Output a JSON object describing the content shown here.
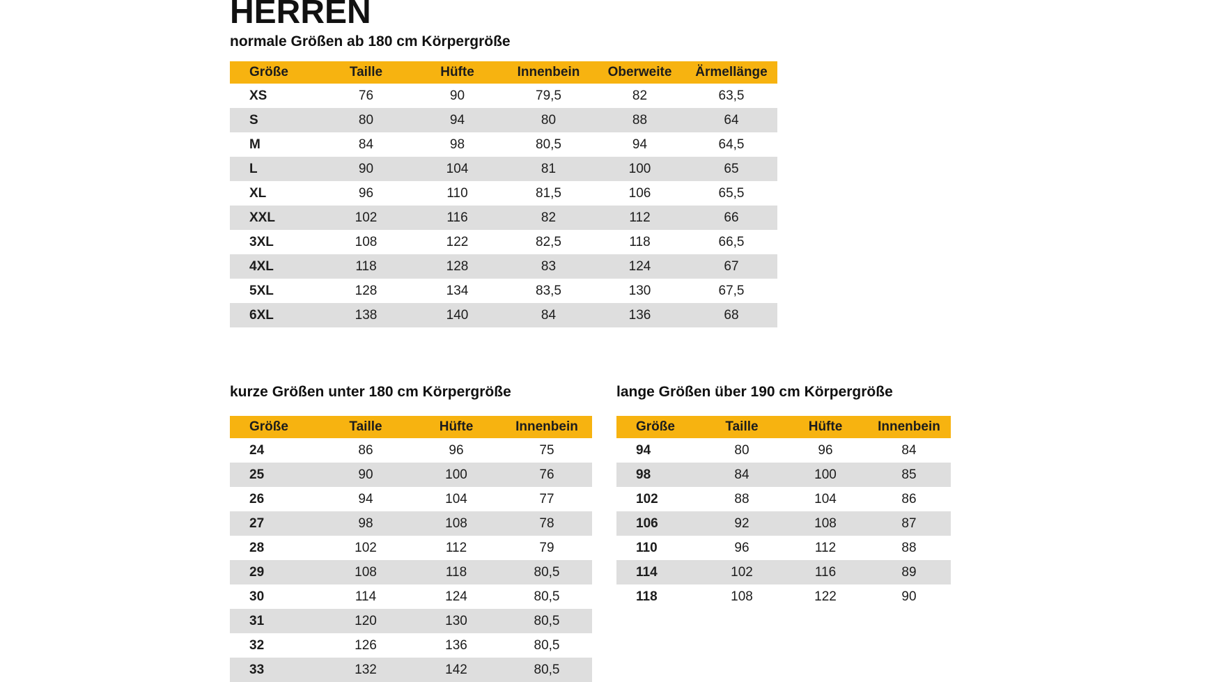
{
  "page": {
    "title": "HERREN"
  },
  "colors": {
    "accent": "#F7B310",
    "row_alt": "#DEDEDE",
    "text": "#1C1C1C",
    "background": "#FFFFFF"
  },
  "chart_data": [
    {
      "type": "table",
      "title": "HERREN",
      "subtitle": "normale Größen ab 180 cm Körpergröße",
      "columns": [
        "Größe",
        "Taille",
        "Hüfte",
        "Innenbein",
        "Oberweite",
        "Ärmellänge"
      ],
      "rows": [
        [
          "XS",
          "76",
          "90",
          "79,5",
          "82",
          "63,5"
        ],
        [
          "S",
          "80",
          "94",
          "80",
          "88",
          "64"
        ],
        [
          "M",
          "84",
          "98",
          "80,5",
          "94",
          "64,5"
        ],
        [
          "L",
          "90",
          "104",
          "81",
          "100",
          "65"
        ],
        [
          "XL",
          "96",
          "110",
          "81,5",
          "106",
          "65,5"
        ],
        [
          "XXL",
          "102",
          "116",
          "82",
          "112",
          "66"
        ],
        [
          "3XL",
          "108",
          "122",
          "82,5",
          "118",
          "66,5"
        ],
        [
          "4XL",
          "118",
          "128",
          "83",
          "124",
          "67"
        ],
        [
          "5XL",
          "128",
          "134",
          "83,5",
          "130",
          "67,5"
        ],
        [
          "6XL",
          "138",
          "140",
          "84",
          "136",
          "68"
        ]
      ],
      "layout_hints": {
        "header_background": "#F7B310",
        "zebra_rows": "even rows gray",
        "grid": "off"
      }
    },
    {
      "type": "table",
      "subtitle": "kurze Größen unter 180 cm Körpergröße",
      "columns": [
        "Größe",
        "Taille",
        "Hüfte",
        "Innenbein"
      ],
      "rows": [
        [
          "24",
          "86",
          "96",
          "75"
        ],
        [
          "25",
          "90",
          "100",
          "76"
        ],
        [
          "26",
          "94",
          "104",
          "77"
        ],
        [
          "27",
          "98",
          "108",
          "78"
        ],
        [
          "28",
          "102",
          "112",
          "79"
        ],
        [
          "29",
          "108",
          "118",
          "80,5"
        ],
        [
          "30",
          "114",
          "124",
          "80,5"
        ],
        [
          "31",
          "120",
          "130",
          "80,5"
        ],
        [
          "32",
          "126",
          "136",
          "80,5"
        ],
        [
          "33",
          "132",
          "142",
          "80,5"
        ]
      ],
      "layout_hints": {
        "header_background": "#F7B310",
        "zebra_rows": "even rows gray",
        "grid": "off"
      }
    },
    {
      "type": "table",
      "subtitle": "lange Größen über 190 cm Körpergröße",
      "columns": [
        "Größe",
        "Taille",
        "Hüfte",
        "Innenbein"
      ],
      "rows": [
        [
          "94",
          "80",
          "96",
          "84"
        ],
        [
          "98",
          "84",
          "100",
          "85"
        ],
        [
          "102",
          "88",
          "104",
          "86"
        ],
        [
          "106",
          "92",
          "108",
          "87"
        ],
        [
          "110",
          "96",
          "112",
          "88"
        ],
        [
          "114",
          "102",
          "116",
          "89"
        ],
        [
          "118",
          "108",
          "122",
          "90"
        ]
      ],
      "layout_hints": {
        "header_background": "#F7B310",
        "zebra_rows": "even rows gray",
        "grid": "off"
      }
    }
  ]
}
